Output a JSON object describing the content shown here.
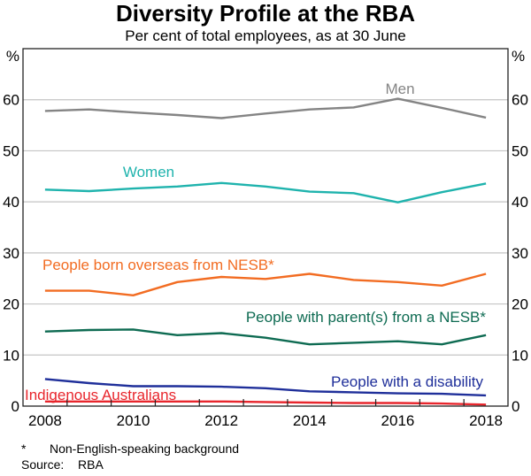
{
  "chart_data": {
    "type": "line",
    "title": "Diversity Profile at the RBA",
    "subtitle": "Per cent of total employees, as at 30 June",
    "xlabel": "",
    "ylabel": "%",
    "ylabel_right": "%",
    "x": [
      2008,
      2009,
      2010,
      2011,
      2012,
      2013,
      2014,
      2015,
      2016,
      2017,
      2018
    ],
    "xlim": [
      2007.5,
      2018.5
    ],
    "xticks": [
      "2008",
      "2010",
      "2012",
      "2014",
      "2016",
      "2018"
    ],
    "ylim": [
      0,
      70
    ],
    "yticks": [
      "0",
      "10",
      "20",
      "30",
      "40",
      "50",
      "60"
    ],
    "grid": true,
    "series": [
      {
        "name": "Men",
        "color": "#848484",
        "values": [
          57.8,
          58.1,
          57.5,
          57.0,
          56.4,
          57.3,
          58.1,
          58.5,
          60.2,
          58.4,
          56.5
        ]
      },
      {
        "name": "Women",
        "color": "#1fb3ad",
        "values": [
          42.4,
          42.1,
          42.6,
          43.0,
          43.7,
          43.0,
          42.0,
          41.7,
          39.9,
          41.9,
          43.6
        ]
      },
      {
        "name": "People born overseas from NESB*",
        "color": "#f26c22",
        "values": [
          22.6,
          22.6,
          21.7,
          24.3,
          25.3,
          24.9,
          25.9,
          24.7,
          24.3,
          23.6,
          25.9
        ]
      },
      {
        "name": "People with parent(s) from a NESB*",
        "color": "#0e6b52",
        "values": [
          14.6,
          14.9,
          15.0,
          13.9,
          14.3,
          13.4,
          12.1,
          12.4,
          12.7,
          12.1,
          13.9
        ]
      },
      {
        "name": "People with a disability",
        "color": "#1f2f9a",
        "values": [
          5.3,
          4.5,
          3.9,
          3.9,
          3.8,
          3.5,
          2.9,
          2.7,
          2.5,
          2.4,
          2.1
        ]
      },
      {
        "name": "Indigenous Australians",
        "color": "#e8262d",
        "values": [
          0.9,
          0.9,
          0.9,
          0.9,
          0.9,
          0.8,
          0.7,
          0.6,
          0.6,
          0.5,
          0.3
        ]
      }
    ]
  },
  "footnotes": {
    "star": "*",
    "note": "Non-English-speaking background",
    "source_label": "Source:",
    "source": "RBA"
  }
}
